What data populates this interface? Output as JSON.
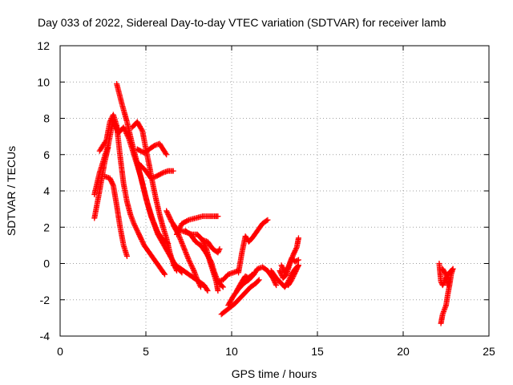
{
  "chart_data": {
    "type": "scatter",
    "title": "Day 033 of 2022, Sidereal Day-to-day VTEC variation (SDTVAR) for receiver lamb",
    "xlabel": "GPS time / hours",
    "ylabel": "SDTVAR / TECUs",
    "xlim": [
      0,
      25
    ],
    "ylim": [
      -4,
      12
    ],
    "xticks": [
      0,
      5,
      10,
      15,
      20,
      25
    ],
    "yticks": [
      -4,
      -2,
      0,
      2,
      4,
      6,
      8,
      10,
      12
    ],
    "grid": true,
    "marker": "+",
    "color": "#ff0000",
    "tracks": [
      [
        [
          2.0,
          3.8
        ],
        [
          2.3,
          5.0
        ],
        [
          2.8,
          6.5
        ],
        [
          3.1,
          7.9
        ],
        [
          3.4,
          7.2
        ],
        [
          3.7,
          7.5
        ],
        [
          4.0,
          6.9
        ],
        [
          4.3,
          6.0
        ],
        [
          4.7,
          4.8
        ],
        [
          5.0,
          3.6
        ],
        [
          5.3,
          2.6
        ],
        [
          5.7,
          1.6
        ],
        [
          6.0,
          1.1
        ],
        [
          6.3,
          0.6
        ],
        [
          6.6,
          0.1
        ],
        [
          6.9,
          -0.3
        ],
        [
          7.1,
          -0.5
        ]
      ],
      [
        [
          3.3,
          9.9
        ],
        [
          3.6,
          8.8
        ],
        [
          3.9,
          7.8
        ],
        [
          4.2,
          6.6
        ],
        [
          4.5,
          5.5
        ],
        [
          4.8,
          4.4
        ],
        [
          5.1,
          3.3
        ],
        [
          5.4,
          2.4
        ],
        [
          5.7,
          1.7
        ],
        [
          6.0,
          1.3
        ],
        [
          6.3,
          1.1
        ]
      ],
      [
        [
          4.2,
          7.5
        ],
        [
          4.5,
          7.8
        ],
        [
          4.8,
          7.3
        ],
        [
          5.0,
          6.3
        ],
        [
          5.2,
          5.4
        ],
        [
          5.4,
          4.4
        ],
        [
          5.6,
          3.5
        ],
        [
          5.8,
          2.7
        ],
        [
          6.0,
          2.0
        ],
        [
          6.2,
          1.4
        ],
        [
          6.4,
          0.6
        ],
        [
          6.6,
          0.0
        ],
        [
          6.8,
          -0.4
        ]
      ],
      [
        [
          2.0,
          2.5
        ],
        [
          2.3,
          4.0
        ],
        [
          2.6,
          5.6
        ],
        [
          2.8,
          6.4
        ]
      ],
      [
        [
          2.6,
          4.8
        ],
        [
          2.9,
          4.7
        ],
        [
          3.1,
          4.3
        ],
        [
          3.3,
          3.2
        ],
        [
          3.5,
          2.0
        ],
        [
          3.7,
          1.0
        ],
        [
          3.9,
          0.4
        ]
      ],
      [
        [
          2.3,
          6.2
        ],
        [
          2.7,
          6.8
        ],
        [
          2.9,
          7.8
        ],
        [
          3.1,
          8.2
        ],
        [
          3.3,
          7.6
        ],
        [
          3.5,
          5.9
        ],
        [
          3.7,
          4.4
        ],
        [
          3.9,
          3.4
        ],
        [
          4.1,
          2.7
        ],
        [
          4.3,
          2.2
        ],
        [
          4.6,
          1.6
        ],
        [
          4.9,
          1.0
        ],
        [
          5.2,
          0.6
        ],
        [
          5.5,
          0.2
        ],
        [
          5.8,
          -0.2
        ],
        [
          6.1,
          -0.6
        ]
      ],
      [
        [
          4.5,
          6.3
        ],
        [
          4.9,
          6.1
        ],
        [
          5.2,
          6.3
        ],
        [
          5.5,
          6.5
        ],
        [
          5.8,
          6.6
        ],
        [
          6.0,
          6.3
        ],
        [
          6.2,
          6.0
        ]
      ],
      [
        [
          4.6,
          5.5
        ],
        [
          5.0,
          5.1
        ],
        [
          5.3,
          4.7
        ],
        [
          5.6,
          4.8
        ],
        [
          6.0,
          5.0
        ],
        [
          6.3,
          5.1
        ],
        [
          6.6,
          5.1
        ]
      ],
      [
        [
          6.2,
          2.9
        ],
        [
          6.5,
          2.3
        ],
        [
          6.8,
          1.9
        ],
        [
          7.1,
          1.8
        ],
        [
          7.4,
          1.7
        ],
        [
          7.7,
          1.6
        ],
        [
          8.0,
          1.6
        ],
        [
          8.3,
          1.3
        ],
        [
          8.5,
          0.9
        ],
        [
          8.7,
          0.2
        ],
        [
          8.9,
          -0.4
        ],
        [
          9.1,
          -1.0
        ],
        [
          9.2,
          -1.5
        ]
      ],
      [
        [
          6.8,
          1.6
        ],
        [
          7.1,
          2.2
        ],
        [
          7.5,
          2.4
        ],
        [
          7.9,
          2.5
        ],
        [
          8.3,
          2.6
        ],
        [
          8.7,
          2.6
        ],
        [
          9.0,
          2.6
        ],
        [
          9.2,
          2.6
        ]
      ],
      [
        [
          6.6,
          -0.1
        ],
        [
          6.9,
          -0.2
        ],
        [
          7.2,
          -0.4
        ],
        [
          7.5,
          -0.6
        ],
        [
          7.8,
          -0.8
        ],
        [
          8.1,
          -1.0
        ],
        [
          8.4,
          -1.2
        ],
        [
          8.6,
          -1.5
        ]
      ],
      [
        [
          6.6,
          2.1
        ],
        [
          6.9,
          1.6
        ],
        [
          7.2,
          0.9
        ],
        [
          7.5,
          0.2
        ],
        [
          7.8,
          -0.4
        ],
        [
          8.0,
          -0.9
        ],
        [
          8.2,
          -1.3
        ]
      ],
      [
        [
          7.3,
          1.8
        ],
        [
          7.6,
          1.6
        ],
        [
          7.9,
          1.2
        ],
        [
          8.2,
          1.0
        ],
        [
          8.5,
          0.6
        ],
        [
          8.8,
          0.1
        ],
        [
          9.0,
          -0.5
        ],
        [
          9.2,
          -1.0
        ],
        [
          9.5,
          -1.3
        ]
      ],
      [
        [
          8.3,
          1.3
        ],
        [
          8.6,
          1.2
        ],
        [
          8.9,
          0.8
        ],
        [
          9.2,
          0.6
        ],
        [
          9.3,
          0.8
        ]
      ],
      [
        [
          9.2,
          -1.0
        ],
        [
          9.5,
          -0.9
        ],
        [
          9.8,
          -0.6
        ],
        [
          10.1,
          -0.5
        ],
        [
          10.4,
          -0.4
        ]
      ],
      [
        [
          9.4,
          -2.8
        ],
        [
          9.8,
          -2.5
        ],
        [
          10.2,
          -2.2
        ],
        [
          10.5,
          -1.9
        ],
        [
          10.8,
          -1.6
        ],
        [
          11.1,
          -1.3
        ],
        [
          11.4,
          -1.1
        ],
        [
          11.6,
          -0.9
        ]
      ],
      [
        [
          9.8,
          -2.3
        ],
        [
          10.1,
          -1.8
        ],
        [
          10.4,
          -1.4
        ],
        [
          10.7,
          -1.1
        ],
        [
          11.0,
          -0.9
        ],
        [
          11.3,
          -0.6
        ],
        [
          11.5,
          -0.3
        ],
        [
          11.8,
          -0.2
        ],
        [
          12.1,
          -0.4
        ],
        [
          12.4,
          -0.8
        ],
        [
          12.6,
          -1.2
        ]
      ],
      [
        [
          10.3,
          -1.5
        ],
        [
          10.6,
          -1.0
        ],
        [
          10.8,
          -0.7
        ],
        [
          11.0,
          -0.8
        ],
        [
          11.2,
          -0.6
        ]
      ],
      [
        [
          10.4,
          -0.5
        ],
        [
          10.6,
          0.6
        ],
        [
          10.8,
          1.5
        ],
        [
          11.0,
          1.2
        ],
        [
          11.2,
          1.4
        ],
        [
          11.5,
          1.8
        ],
        [
          11.8,
          2.2
        ],
        [
          12.1,
          2.4
        ]
      ],
      [
        [
          12.3,
          -0.4
        ],
        [
          12.6,
          -0.8
        ],
        [
          12.9,
          -1.1
        ],
        [
          13.1,
          -1.3
        ],
        [
          13.3,
          -1.0
        ],
        [
          13.5,
          -0.6
        ],
        [
          13.7,
          -0.3
        ],
        [
          13.9,
          -0.1
        ]
      ],
      [
        [
          12.8,
          -0.4
        ],
        [
          13.0,
          -0.8
        ],
        [
          13.2,
          -0.6
        ],
        [
          13.4,
          0.0
        ],
        [
          13.6,
          0.5
        ],
        [
          13.8,
          0.9
        ],
        [
          13.9,
          1.4
        ]
      ],
      [
        [
          12.9,
          -0.1
        ],
        [
          13.1,
          -0.5
        ],
        [
          13.3,
          -0.2
        ],
        [
          13.5,
          0.3
        ],
        [
          13.7,
          0.1
        ],
        [
          13.9,
          0.2
        ]
      ],
      [
        [
          13.3,
          -1.2
        ],
        [
          13.5,
          -0.9
        ],
        [
          13.7,
          -0.5
        ],
        [
          13.9,
          -0.1
        ]
      ],
      [
        [
          22.1,
          0.0
        ],
        [
          22.2,
          -1.0
        ],
        [
          22.3,
          -1.2
        ],
        [
          22.5,
          -0.8
        ],
        [
          22.7,
          -0.5
        ],
        [
          22.9,
          -0.3
        ]
      ],
      [
        [
          22.2,
          -3.3
        ],
        [
          22.3,
          -2.8
        ],
        [
          22.5,
          -2.3
        ],
        [
          22.6,
          -1.7
        ],
        [
          22.7,
          -1.2
        ],
        [
          22.8,
          -0.6
        ],
        [
          22.9,
          -0.3
        ]
      ],
      [
        [
          22.3,
          -0.3
        ],
        [
          22.5,
          -0.6
        ],
        [
          22.6,
          -1.2
        ],
        [
          22.7,
          -0.9
        ]
      ]
    ]
  }
}
